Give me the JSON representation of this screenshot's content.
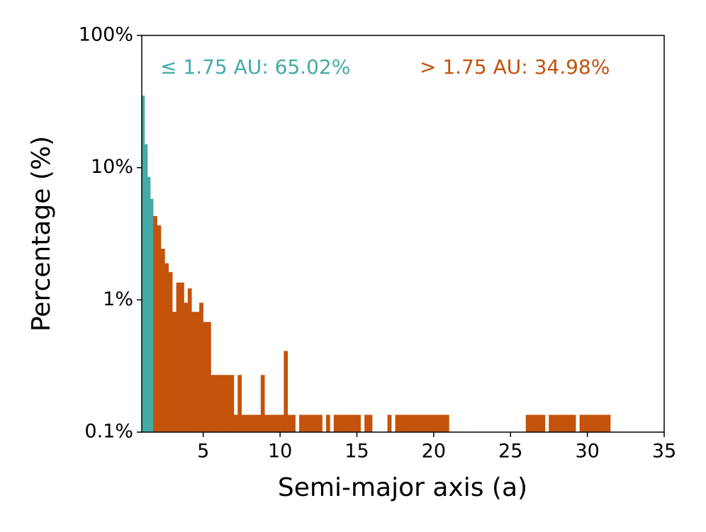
{
  "chart_data": {
    "type": "histogram",
    "xlabel": "Semi-major axis (a)",
    "ylabel": "Percentage (%)",
    "xlim": [
      1,
      35
    ],
    "ylim": [
      0.1,
      100
    ],
    "yscale": "log",
    "xticks": [
      5,
      10,
      15,
      20,
      25,
      30,
      35
    ],
    "yticks": [
      {
        "value": 0.1,
        "label": "0.1%"
      },
      {
        "value": 1,
        "label": "1%"
      },
      {
        "value": 10,
        "label": "10%"
      },
      {
        "value": 100,
        "label": "100%"
      }
    ],
    "series": [
      {
        "name": "≤ 1.75 AU: 65.02%",
        "color": "#44aaa6",
        "bins": [
          1,
          1.1875,
          1.375,
          1.5625,
          1.75
        ],
        "values": [
          35,
          15,
          8.5,
          5.8
        ]
      },
      {
        "name": "> 1.75 AU: 34.98%",
        "color": "#c4520a",
        "bins": [
          1.75,
          2,
          2.25,
          2.5,
          2.75,
          3,
          3.25,
          3.5,
          3.75,
          4,
          4.25,
          4.5,
          4.75,
          5,
          5.25,
          5.5,
          5.75,
          6,
          6.25,
          6.5,
          6.75,
          7,
          7.25,
          7.5,
          7.75,
          8,
          8.25,
          8.5,
          8.75,
          9,
          9.25,
          9.5,
          9.75,
          10,
          10.25,
          10.5,
          10.75,
          11,
          11.25,
          11.5,
          11.75,
          12,
          12.25,
          12.5,
          12.75,
          13,
          13.25,
          13.5,
          13.75,
          14,
          14.25,
          14.5,
          14.75,
          15,
          15.25,
          15.5,
          15.75,
          16,
          16.25,
          16.5,
          16.75,
          17,
          17.25,
          17.5,
          17.75,
          18,
          18.25,
          18.5,
          18.75,
          19,
          19.25,
          19.5,
          19.75,
          20,
          20.25,
          20.5,
          20.75,
          21,
          21.25,
          21.5,
          21.75,
          22,
          22.25,
          22.5,
          22.75,
          23,
          23.25,
          23.5,
          23.75,
          24,
          24.25,
          24.5,
          24.75,
          25,
          25.25,
          25.5,
          25.75,
          26,
          26.25,
          26.5,
          26.75,
          27,
          27.25,
          27.5,
          27.75,
          28,
          28.25,
          28.5,
          28.75,
          29,
          29.25,
          29.5,
          29.75,
          30,
          30.25,
          30.5,
          30.75,
          31,
          31.25,
          31.5
        ],
        "values": [
          4.3,
          3.65,
          2.43,
          1.89,
          1.62,
          0.81,
          1.35,
          1.35,
          0.95,
          1.22,
          0.81,
          0.81,
          0.95,
          0.68,
          0.68,
          0.27,
          0.27,
          0.27,
          0.27,
          0.27,
          0.27,
          0.135,
          0.27,
          0.135,
          0.135,
          0.135,
          0.135,
          0.135,
          0.27,
          0.135,
          0.135,
          0.135,
          0.135,
          0.135,
          0.41,
          0.135,
          0.135,
          0,
          0.135,
          0.135,
          0.135,
          0.135,
          0.135,
          0.135,
          0,
          0.135,
          0,
          0.135,
          0.135,
          0.135,
          0.135,
          0.135,
          0.135,
          0.135,
          0,
          0.135,
          0.135,
          0,
          0,
          0,
          0,
          0.135,
          0,
          0.135,
          0.135,
          0.135,
          0.135,
          0.135,
          0.135,
          0.135,
          0.135,
          0.135,
          0.135,
          0.135,
          0.135,
          0.135,
          0.135,
          0,
          0,
          0,
          0,
          0,
          0,
          0,
          0,
          0,
          0,
          0,
          0,
          0,
          0,
          0,
          0,
          0,
          0,
          0,
          0,
          0.135,
          0.135,
          0.135,
          0.135,
          0.135,
          0,
          0.135,
          0.135,
          0.135,
          0.135,
          0.135,
          0.135,
          0.135,
          0,
          0.135,
          0.135,
          0.135,
          0.135,
          0.135,
          0.135,
          0.135,
          0.135
        ]
      }
    ]
  }
}
